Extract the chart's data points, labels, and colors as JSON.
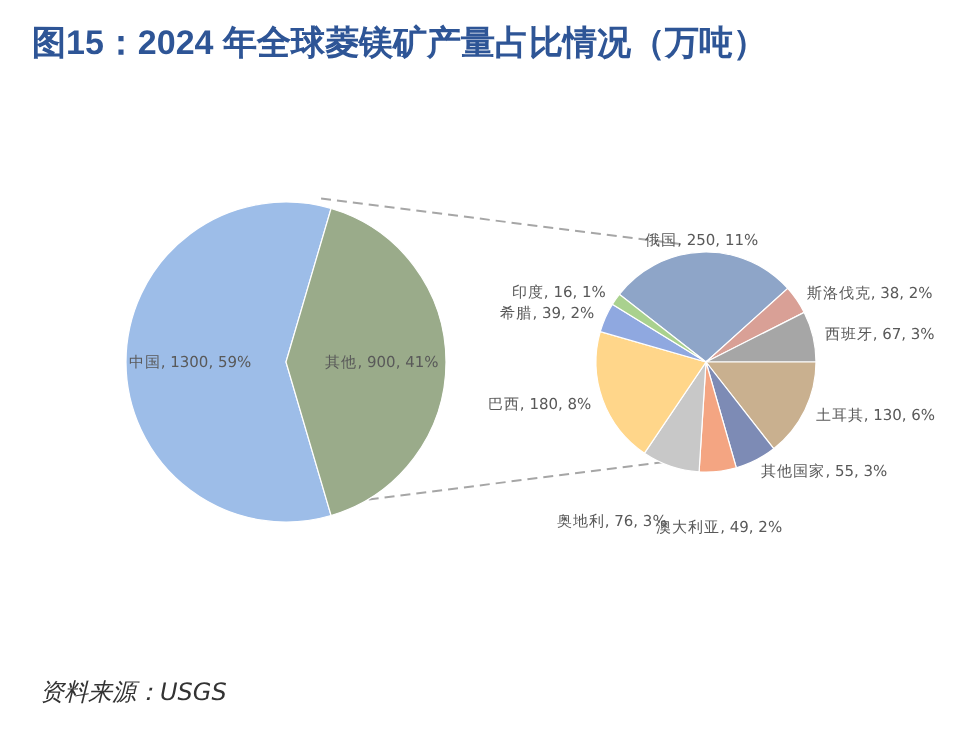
{
  "chart_data": [
    {
      "type": "pie",
      "title": "图15：2024 年全球菱镁矿产量占比情况（万吨）",
      "categories": [
        "中国",
        "其他"
      ],
      "values": [
        1300,
        900
      ],
      "value_labels": [
        "1300, 59%",
        "900, 41%"
      ],
      "colors": [
        "#9dbde8",
        "#9aab8a"
      ],
      "annotations": [
        "资料来源：USGS"
      ]
    },
    {
      "type": "pie",
      "categories": [
        "俄国",
        "斯洛伐克",
        "西班牙",
        "土耳其",
        "其他国家",
        "澳大利亚",
        "奥地利",
        "巴西",
        "希腊",
        "印度"
      ],
      "values": [
        250,
        38,
        67,
        130,
        55,
        49,
        76,
        180,
        39,
        16
      ],
      "value_labels": [
        "250, 11%",
        "38, 2%",
        "67, 3%",
        "130, 6%",
        "55, 3%",
        "49, 2%",
        "76, 3%",
        "180, 8%",
        "39, 2%",
        "16, 1%"
      ],
      "colors": [
        "#8ea5c8",
        "#d9a096",
        "#a6a6a6",
        "#c9b08f",
        "#7d8bb5",
        "#f4a582",
        "#c8c8c8",
        "#ffd68a",
        "#8fa8e0",
        "#a9d18e"
      ]
    }
  ]
}
